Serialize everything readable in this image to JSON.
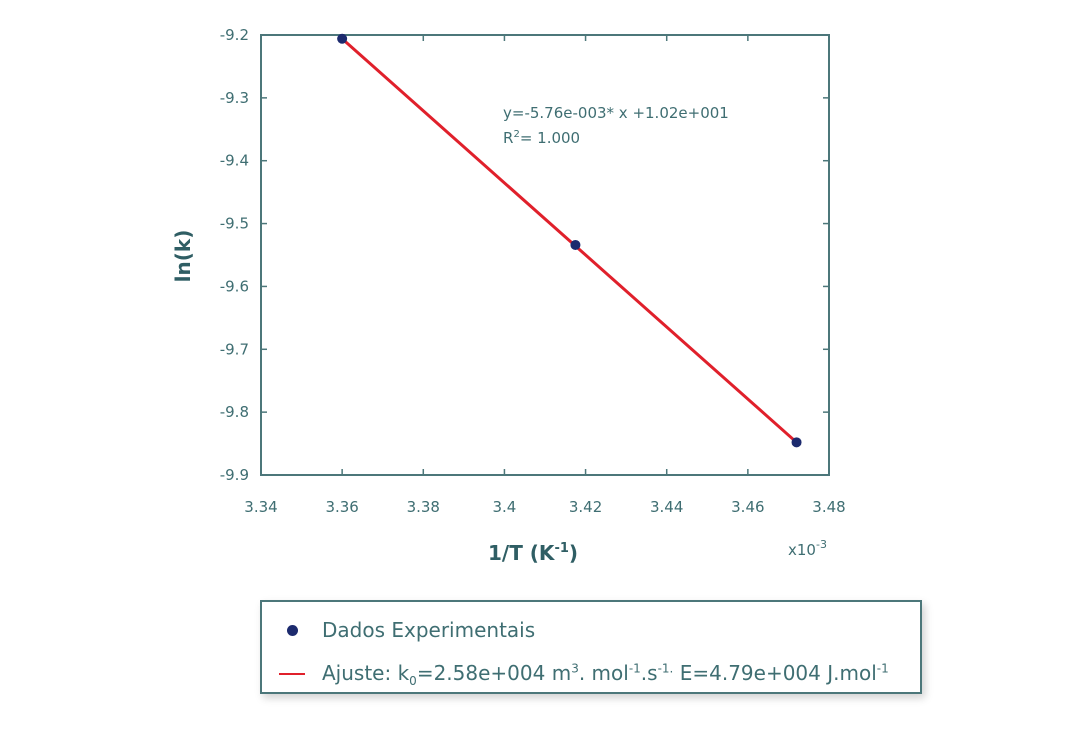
{
  "chart_data": {
    "type": "scatter",
    "xlabel_main": "1/T (K",
    "xlabel_sup": "-1",
    "xlabel_end": ")",
    "ylabel": "ln(k)",
    "x_multiplier_base": "x10",
    "x_multiplier_exp": "-3",
    "xlim": [
      3.34,
      3.48
    ],
    "ylim": [
      -9.9,
      -9.2
    ],
    "x_ticks": [
      3.34,
      3.36,
      3.38,
      3.4,
      3.42,
      3.44,
      3.46,
      3.48
    ],
    "x_tick_labels": [
      "3.34",
      "3.36",
      "3.38",
      "3.4",
      "3.42",
      "3.44",
      "3.46",
      "3.48"
    ],
    "y_ticks": [
      -9.2,
      -9.3,
      -9.4,
      -9.5,
      -9.6,
      -9.7,
      -9.8,
      -9.9
    ],
    "y_tick_labels": [
      "-9.2",
      "-9.3",
      "-9.4",
      "-9.5",
      "-9.6",
      "-9.7",
      "-9.8",
      "-9.9"
    ],
    "grid": false,
    "legend_position": "below",
    "series": [
      {
        "name": "Dados Experimentais",
        "kind": "points",
        "color": "#1c2a6e",
        "x": [
          3.36,
          3.4175,
          3.472
        ],
        "y": [
          -9.206,
          -9.534,
          -9.848
        ]
      },
      {
        "name": "Ajuste",
        "kind": "line",
        "color": "#e0202b",
        "x": [
          3.36,
          3.472
        ],
        "y": [
          -9.206,
          -9.848
        ]
      }
    ],
    "annotation": {
      "equation": "y=-5.76e-003* x +1.02e+001",
      "r2_label": "R",
      "r2_sup": "2",
      "r2_value": "= 1.000"
    },
    "colors": {
      "axis": "#4c777a",
      "text": "#3f6e72"
    }
  },
  "legend": {
    "item1": "Dados Experimentais",
    "item2_a": "Ajuste: k",
    "item2_b": "0",
    "item2_c": "=2.58e+004 m",
    "item2_d": "3",
    "item2_e": ". mol",
    "item2_f": "-1",
    "item2_g": ".s",
    "item2_h": "-1.",
    "item2_i": " E=4.79e+004 J.mol",
    "item2_j": "-1"
  }
}
